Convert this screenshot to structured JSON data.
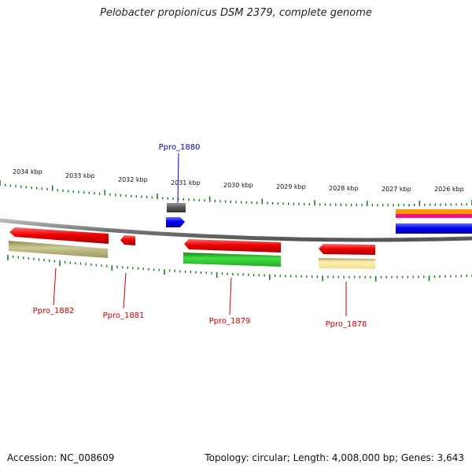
{
  "title": "Pelobacter propionicus DSM 2379, complete genome",
  "footer": {
    "accession": "Accession: NC_008609",
    "summary": "Topology: circular; Length: 4,008,000 bp; Genes: 3,643"
  },
  "ruler_labels": [
    "2034 kbp",
    "2033 kbp",
    "2032 kbp",
    "2031 kbp",
    "2030 kbp",
    "2029 kbp",
    "2028 kbp",
    "2027 kbp",
    "2026 kbp"
  ],
  "genes": [
    {
      "label": "Ppro_1882",
      "color": "#cc0000"
    },
    {
      "label": "Ppro_1881",
      "color": "#cc0000"
    },
    {
      "label": "Ppro_1880",
      "color": "#0000cc"
    },
    {
      "label": "Ppro_1879",
      "color": "#cc0000"
    },
    {
      "label": "Ppro_1878",
      "color": "#cc0000"
    }
  ],
  "colors": {
    "backbone": "#777777",
    "ticks": "#1a7a1a",
    "gene_red": "#ee0000",
    "cog_olive": "#b8b070",
    "cog_green": "#33cc33",
    "cog_yellow": "#f0e090",
    "cog_gray": "#555555",
    "blue": "#0000ee",
    "orange": "#ff9900",
    "magenta": "#ee1188"
  }
}
